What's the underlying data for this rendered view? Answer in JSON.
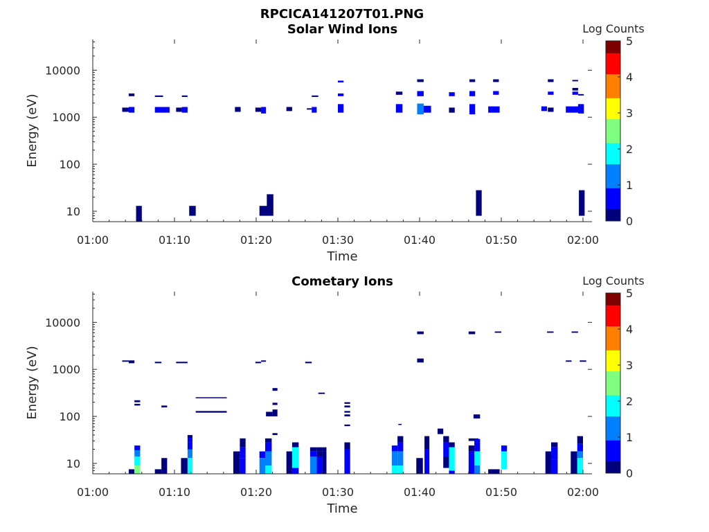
{
  "figure": {
    "title": "RPCICA141207T01.PNG"
  },
  "colormap": [
    "#00007f",
    "#0000ff",
    "#007fff",
    "#00ffff",
    "#7fff7f",
    "#ffff00",
    "#ff7f00",
    "#ff0000",
    "#7f0000"
  ],
  "chart_data": [
    {
      "type": "heatmap",
      "title": "Solar Wind Ions",
      "xlabel": "Time",
      "ylabel": "Energy (eV)",
      "colorbar_label": "Log Counts",
      "x_ticks": [
        "01:00",
        "01:10",
        "01:20",
        "01:30",
        "01:40",
        "01:50",
        "02:00"
      ],
      "x_range_minutes": [
        0,
        61
      ],
      "y_scale": "log",
      "y_range": [
        6,
        45000
      ],
      "y_ticks": [
        10,
        100,
        1000,
        10000
      ],
      "y_tick_labels": [
        "10",
        "100",
        "1000",
        "10000"
      ],
      "color_range": [
        0,
        5
      ],
      "color_ticks": [
        "0",
        "1",
        "2",
        "3",
        "4",
        "5"
      ],
      "cells": [
        [
          3.6,
          4.4,
          1300,
          1600,
          0.2
        ],
        [
          4.4,
          5.1,
          1250,
          1650,
          0.4
        ],
        [
          4.4,
          5.1,
          2800,
          3200,
          0.2
        ],
        [
          5.3,
          6.0,
          6,
          13,
          0.1
        ],
        [
          7.6,
          9.4,
          1250,
          1650,
          0.8
        ],
        [
          7.6,
          8.6,
          2700,
          2900,
          0.3
        ],
        [
          10.2,
          10.9,
          1300,
          1600,
          0.3
        ],
        [
          10.9,
          11.6,
          1250,
          1650,
          0.5
        ],
        [
          10.9,
          11.6,
          2700,
          2900,
          0.3
        ],
        [
          11.8,
          12.6,
          8,
          13,
          0.1
        ],
        [
          17.4,
          18.1,
          1300,
          1650,
          0.2
        ],
        [
          19.9,
          20.6,
          1300,
          1600,
          0.2
        ],
        [
          20.6,
          21.2,
          1200,
          1650,
          0.4
        ],
        [
          20.4,
          21.4,
          8,
          13,
          0.1
        ],
        [
          21.3,
          22.1,
          8,
          23,
          0.1
        ],
        [
          23.7,
          24.4,
          1350,
          1650,
          0.3
        ],
        [
          26.2,
          26.8,
          1450,
          1550,
          0.2
        ],
        [
          26.8,
          27.4,
          1250,
          1650,
          0.4
        ],
        [
          26.8,
          27.6,
          2700,
          2900,
          0.3
        ],
        [
          30.0,
          30.7,
          1250,
          1900,
          0.8
        ],
        [
          30.0,
          30.7,
          2800,
          3200,
          0.6
        ],
        [
          30.0,
          30.7,
          5500,
          6000,
          0.4
        ],
        [
          37.1,
          37.9,
          1250,
          1900,
          0.7
        ],
        [
          37.1,
          37.9,
          3000,
          3500,
          0.3
        ],
        [
          39.7,
          40.5,
          1150,
          1950,
          1.4
        ],
        [
          39.7,
          40.5,
          2800,
          3600,
          0.6
        ],
        [
          39.7,
          40.5,
          5600,
          6400,
          0.2
        ],
        [
          40.5,
          41.4,
          1250,
          1750,
          0.8
        ],
        [
          43.6,
          44.3,
          1250,
          1600,
          0.3
        ],
        [
          43.6,
          44.3,
          2800,
          3400,
          0.5
        ],
        [
          46.1,
          46.8,
          1150,
          1900,
          0.5
        ],
        [
          46.1,
          46.8,
          2800,
          3600,
          0.4
        ],
        [
          46.1,
          46.8,
          5600,
          6400,
          0.3
        ],
        [
          46.9,
          47.6,
          8,
          28,
          0.1
        ],
        [
          48.4,
          49.8,
          1250,
          1700,
          0.8
        ],
        [
          49.0,
          49.7,
          3000,
          3600,
          0.4
        ],
        [
          49.0,
          49.7,
          5600,
          6400,
          0.2
        ],
        [
          54.9,
          55.6,
          1350,
          1700,
          0.5
        ],
        [
          55.7,
          56.4,
          1300,
          1600,
          0.3
        ],
        [
          55.7,
          56.4,
          3000,
          3500,
          0.4
        ],
        [
          55.7,
          56.4,
          5600,
          6400,
          0.3
        ],
        [
          57.9,
          60.1,
          1250,
          1700,
          0.8
        ],
        [
          58.7,
          59.4,
          3000,
          3500,
          0.4
        ],
        [
          58.7,
          59.4,
          3700,
          4200,
          0.2
        ],
        [
          58.7,
          59.4,
          5800,
          6200,
          0.2
        ],
        [
          59.4,
          60.1,
          1200,
          1900,
          0.5
        ],
        [
          59.4,
          60.1,
          2900,
          3100,
          0.3
        ],
        [
          59.5,
          60.2,
          8,
          28,
          0.1
        ]
      ]
    },
    {
      "type": "heatmap",
      "title": "Cometary Ions",
      "xlabel": "Time",
      "ylabel": "Energy (eV)",
      "colorbar_label": "Log Counts",
      "x_ticks": [
        "01:00",
        "01:10",
        "01:20",
        "01:30",
        "01:40",
        "01:50",
        "02:00"
      ],
      "x_range_minutes": [
        0,
        61
      ],
      "y_scale": "log",
      "y_range": [
        6,
        45000
      ],
      "y_ticks": [
        10,
        100,
        1000,
        10000
      ],
      "y_tick_labels": [
        "10",
        "100",
        "1000",
        "10000"
      ],
      "color_range": [
        0,
        5
      ],
      "color_ticks": [
        "0",
        "1",
        "2",
        "3",
        "4",
        "5"
      ],
      "cells": [
        [
          3.6,
          4.4,
          1450,
          1550,
          0.1
        ],
        [
          4.4,
          5.1,
          1350,
          1550,
          0.1
        ],
        [
          5.1,
          5.8,
          200,
          220,
          0.2
        ],
        [
          5.1,
          5.8,
          170,
          185,
          0.2
        ],
        [
          7.6,
          8.4,
          1350,
          1450,
          0.1
        ],
        [
          8.4,
          9.1,
          155,
          170,
          0.1
        ],
        [
          10.2,
          11.6,
          1350,
          1450,
          0.1
        ],
        [
          12.6,
          16.4,
          245,
          255,
          0.1
        ],
        [
          12.6,
          16.4,
          120,
          130,
          0.1
        ],
        [
          11.6,
          12.2,
          35,
          40,
          0.2
        ],
        [
          19.9,
          20.6,
          1350,
          1450,
          0.1
        ],
        [
          20.6,
          21.2,
          1450,
          1550,
          0.1
        ],
        [
          21.2,
          22.0,
          100,
          125,
          0.1
        ],
        [
          22.0,
          22.6,
          100,
          140,
          0.2
        ],
        [
          22.0,
          22.6,
          175,
          195,
          0.3
        ],
        [
          22.0,
          22.6,
          350,
          400,
          0.2
        ],
        [
          22.0,
          22.6,
          40,
          44,
          0.2
        ],
        [
          26.0,
          26.8,
          1350,
          1450,
          0.1
        ],
        [
          27.6,
          28.4,
          300,
          320,
          0.1
        ],
        [
          30.8,
          31.5,
          185,
          200,
          0.2
        ],
        [
          30.8,
          31.5,
          155,
          170,
          0.2
        ],
        [
          30.8,
          31.5,
          120,
          130,
          0.2
        ],
        [
          30.8,
          31.5,
          100,
          110,
          0.2
        ],
        [
          30.8,
          31.5,
          62,
          67,
          0.2
        ],
        [
          37.4,
          37.8,
          66,
          69,
          0.1
        ],
        [
          39.7,
          40.5,
          1400,
          1700,
          0.2
        ],
        [
          39.7,
          40.5,
          5600,
          6400,
          0.1
        ],
        [
          46.0,
          46.8,
          5600,
          6400,
          0.1
        ],
        [
          46.6,
          47.4,
          90,
          110,
          0.1
        ],
        [
          49.2,
          50.0,
          6000,
          6400,
          0.1
        ],
        [
          55.6,
          56.4,
          6000,
          6400,
          0.1
        ],
        [
          57.9,
          58.6,
          1450,
          1550,
          0.1
        ],
        [
          58.6,
          59.4,
          6000,
          6400,
          0.1
        ],
        [
          59.6,
          60.4,
          1450,
          1550,
          0.1
        ],
        [
          4.4,
          5.1,
          6,
          7.5,
          0.1
        ],
        [
          5.1,
          5.8,
          19,
          24,
          0.5
        ],
        [
          5.1,
          5.8,
          14,
          19,
          1.1
        ],
        [
          5.1,
          5.8,
          9,
          14,
          1.8
        ],
        [
          5.1,
          5.8,
          6,
          9,
          2.2
        ],
        [
          7.6,
          8.4,
          6,
          7.5,
          0.1
        ],
        [
          8.4,
          9.1,
          6,
          13,
          0.3
        ],
        [
          10.8,
          11.6,
          6,
          13,
          0.2
        ],
        [
          11.6,
          12.2,
          28,
          35,
          0.5
        ],
        [
          11.6,
          12.2,
          20,
          28,
          0.8
        ],
        [
          11.6,
          12.2,
          13,
          20,
          1.3
        ],
        [
          11.6,
          12.2,
          6,
          13,
          1.8
        ],
        [
          17.2,
          18.0,
          6,
          18,
          0.1
        ],
        [
          18.0,
          18.7,
          22,
          34,
          0.2
        ],
        [
          18.0,
          18.7,
          13,
          22,
          0.5
        ],
        [
          18.0,
          18.7,
          6,
          13,
          0.9
        ],
        [
          20.4,
          21.1,
          13,
          18,
          0.5
        ],
        [
          20.4,
          21.1,
          6,
          13,
          1.2
        ],
        [
          21.1,
          21.9,
          28,
          34,
          0.3
        ],
        [
          21.1,
          21.9,
          18,
          28,
          0.7
        ],
        [
          21.1,
          21.9,
          9,
          18,
          1.5
        ],
        [
          21.1,
          21.9,
          6,
          9,
          2.0
        ],
        [
          23.7,
          24.4,
          6,
          18,
          0.1
        ],
        [
          24.4,
          25.2,
          22,
          28,
          0.2
        ],
        [
          24.4,
          25.2,
          8,
          22,
          1.8
        ],
        [
          24.4,
          25.2,
          6,
          8,
          0.9
        ],
        [
          26.6,
          27.4,
          18,
          22,
          0.1
        ],
        [
          26.6,
          27.4,
          14,
          18,
          0.4
        ],
        [
          26.6,
          27.4,
          6,
          14,
          1.0
        ],
        [
          27.4,
          28.1,
          18,
          22,
          0.1
        ],
        [
          27.4,
          28.1,
          14,
          18,
          0.2
        ],
        [
          27.4,
          28.1,
          6,
          14,
          0.6
        ],
        [
          28.1,
          28.6,
          18,
          22,
          0.1
        ],
        [
          28.1,
          28.6,
          6,
          18,
          0.2
        ],
        [
          30.8,
          31.5,
          20,
          28,
          0.3
        ],
        [
          30.8,
          31.5,
          6,
          20,
          0.9
        ],
        [
          36.6,
          37.3,
          18,
          24,
          0.5
        ],
        [
          36.6,
          37.3,
          9,
          18,
          1.2
        ],
        [
          36.6,
          37.3,
          6,
          9,
          1.6
        ],
        [
          37.3,
          38.0,
          28,
          38,
          0.3
        ],
        [
          37.3,
          38.0,
          18,
          28,
          0.7
        ],
        [
          37.3,
          38.0,
          9,
          18,
          1.5
        ],
        [
          37.3,
          38.0,
          6,
          9,
          2.0
        ],
        [
          39.6,
          40.4,
          6,
          13,
          0.1
        ],
        [
          40.6,
          41.2,
          20,
          38,
          0.1
        ],
        [
          40.6,
          41.2,
          6,
          20,
          0.5
        ],
        [
          42.2,
          42.9,
          42,
          55,
          0.2
        ],
        [
          42.9,
          43.6,
          28,
          38,
          0.1
        ],
        [
          42.9,
          43.6,
          14,
          28,
          0.4
        ],
        [
          42.9,
          43.6,
          8,
          14,
          0.2
        ],
        [
          43.6,
          44.3,
          22,
          28,
          0.3
        ],
        [
          43.6,
          44.3,
          7,
          22,
          1.8
        ],
        [
          43.6,
          44.3,
          6,
          7,
          0.7
        ],
        [
          46.0,
          46.7,
          18,
          24,
          0.2
        ],
        [
          46.0,
          46.7,
          6,
          18,
          0.4
        ],
        [
          46.0,
          47.2,
          30,
          34,
          0.1
        ],
        [
          46.7,
          47.4,
          28,
          33,
          0.4
        ],
        [
          46.7,
          47.4,
          18,
          28,
          0.9
        ],
        [
          46.7,
          47.4,
          9,
          18,
          1.7
        ],
        [
          46.7,
          47.4,
          6,
          9,
          1.3
        ],
        [
          48.4,
          49.8,
          6,
          7.5,
          0.1
        ],
        [
          50.0,
          50.7,
          18,
          24,
          0.6
        ],
        [
          50.0,
          50.7,
          7.5,
          18,
          2.0
        ],
        [
          55.4,
          56.1,
          6,
          18,
          0.1
        ],
        [
          56.1,
          56.9,
          22,
          28,
          0.2
        ],
        [
          56.1,
          56.9,
          12,
          22,
          0.5
        ],
        [
          56.1,
          56.9,
          6,
          12,
          0.9
        ],
        [
          58.5,
          59.3,
          6,
          18,
          0.1
        ],
        [
          59.3,
          60.0,
          26,
          38,
          0.2
        ],
        [
          59.3,
          60.0,
          18,
          26,
          0.7
        ],
        [
          59.3,
          60.0,
          13,
          18,
          1.0
        ],
        [
          59.3,
          60.0,
          6,
          13,
          1.8
        ]
      ]
    }
  ]
}
